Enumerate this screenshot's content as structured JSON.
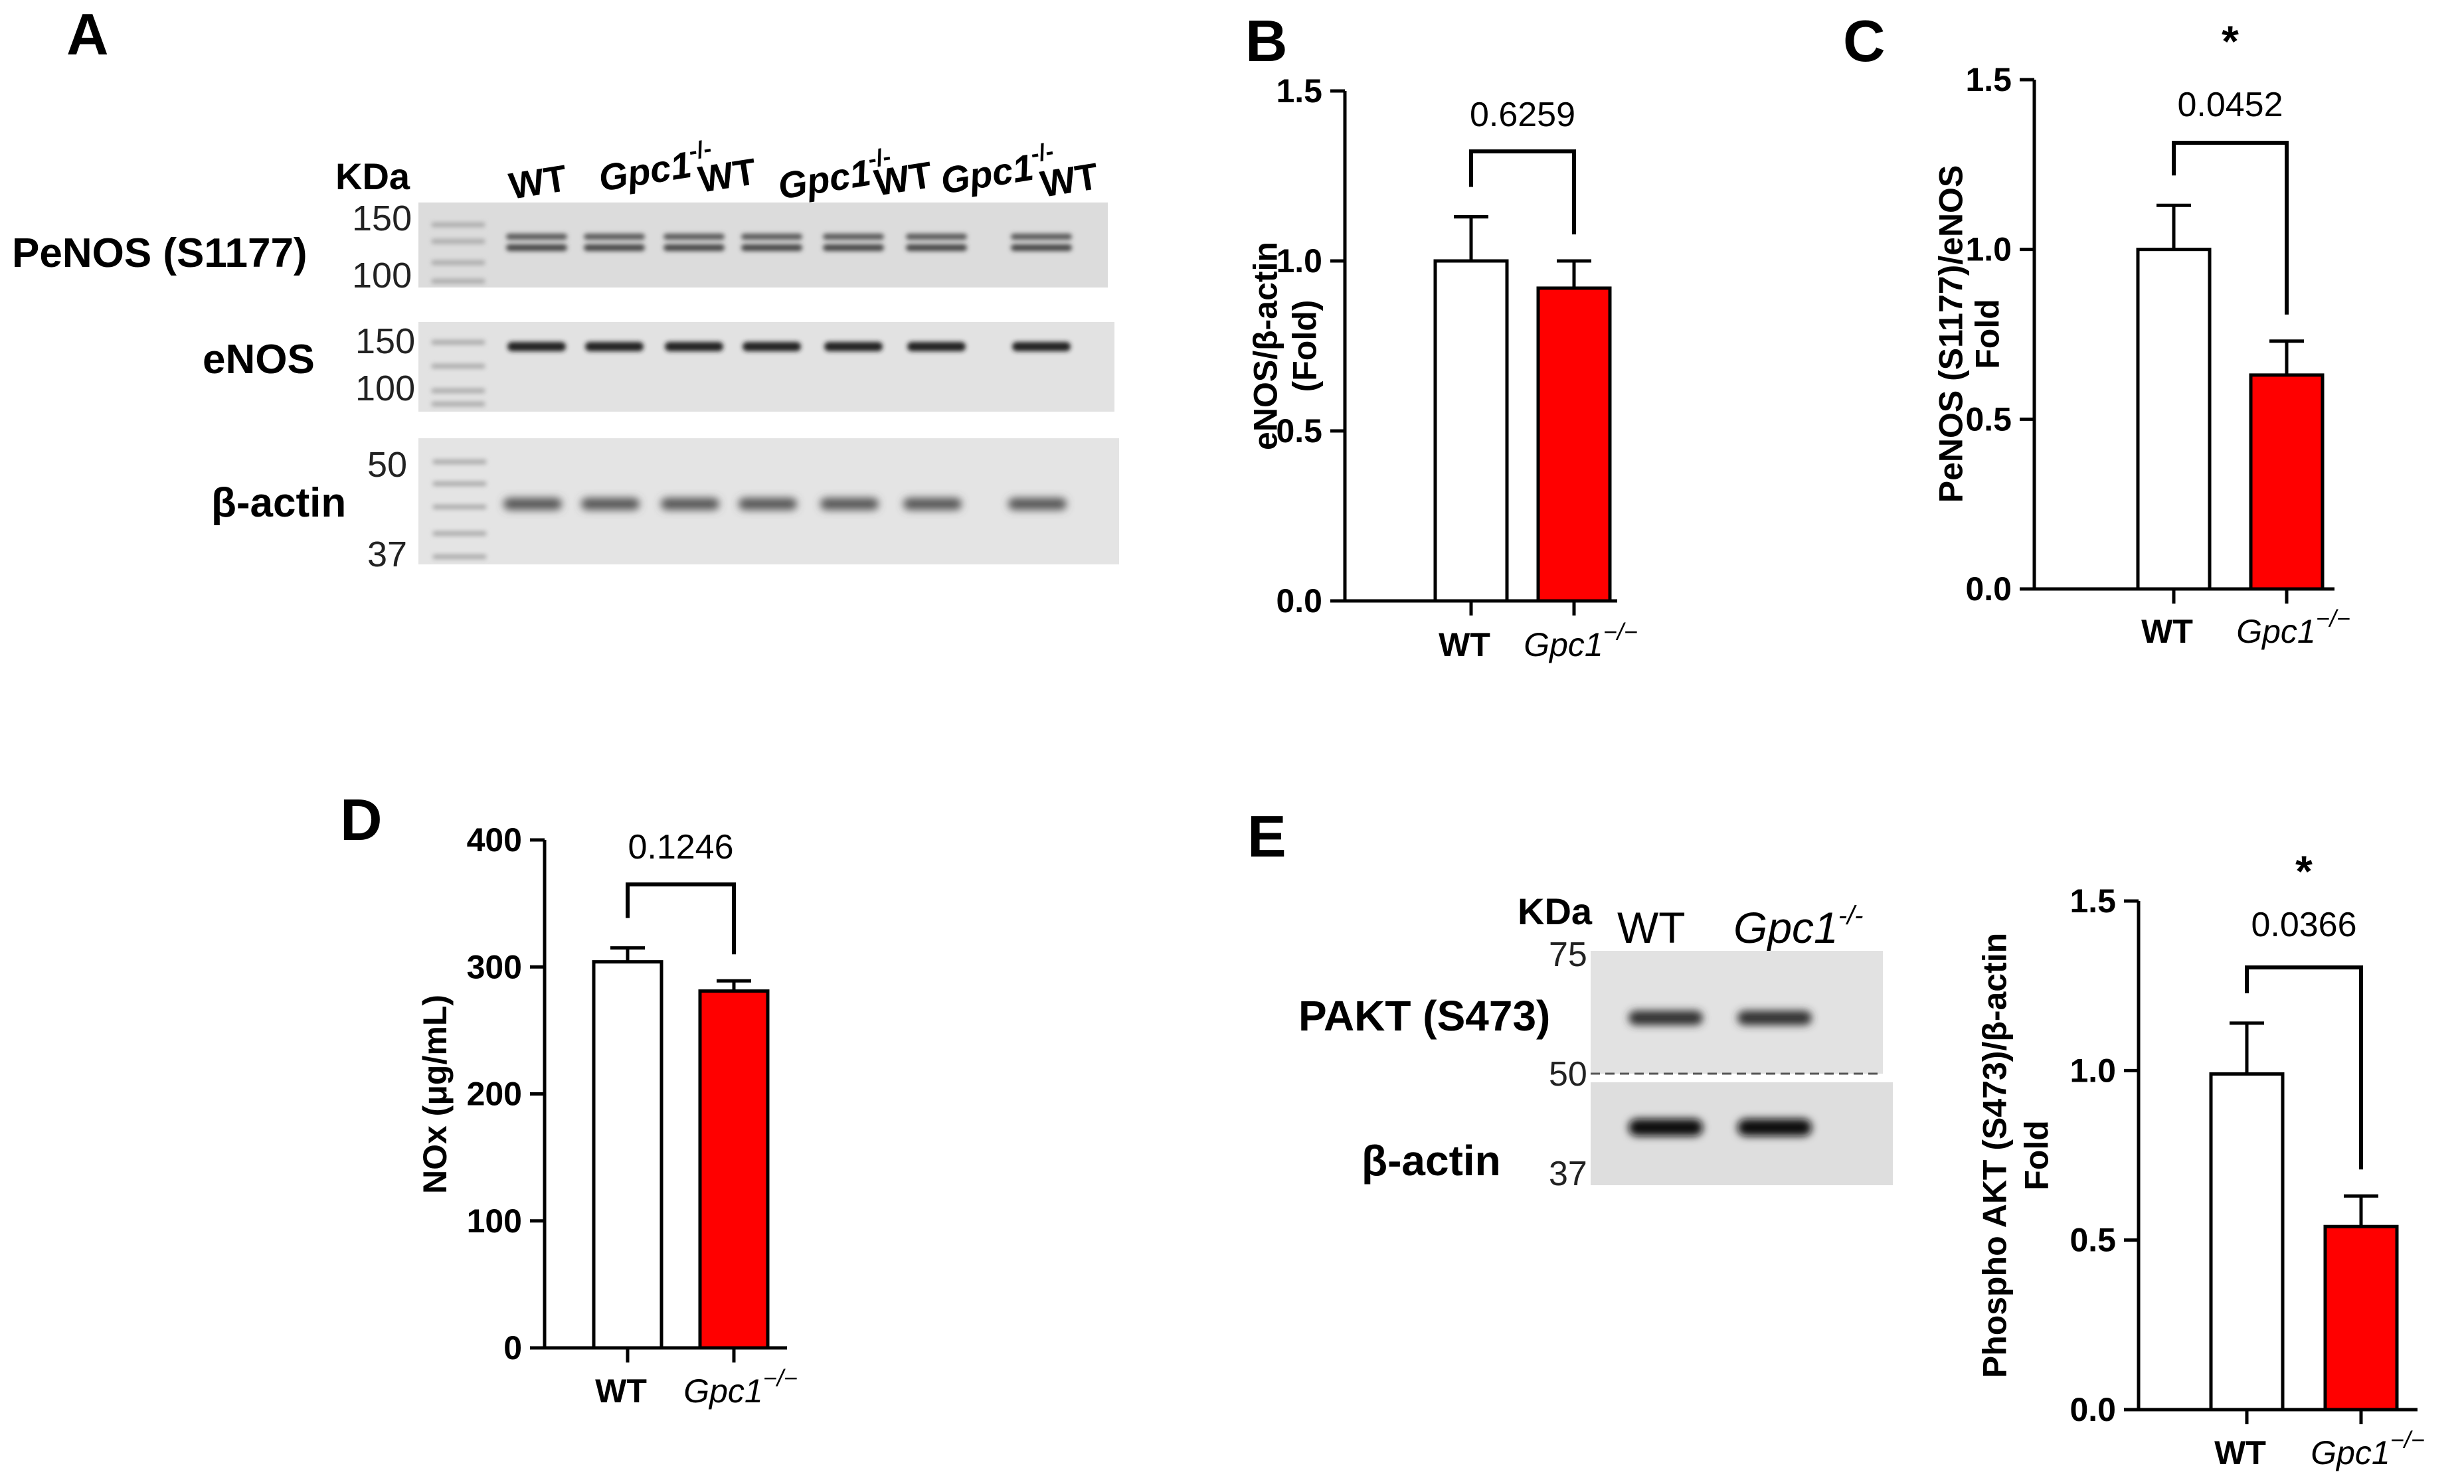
{
  "panels": {
    "A": {
      "label": "A",
      "kda_label": "KDa",
      "lanes": [
        {
          "text": "WT",
          "sup": ""
        },
        {
          "text": "Gpc1",
          "sup": "-/-"
        },
        {
          "text": "WT",
          "sup": ""
        },
        {
          "text": "Gpc1",
          "sup": "-/-"
        },
        {
          "text": "WT",
          "sup": ""
        },
        {
          "text": "Gpc1",
          "sup": "-/-"
        },
        {
          "text": "WT",
          "sup": ""
        }
      ],
      "blots": [
        {
          "name": "PeNOS (S1177)",
          "markers": [
            "150",
            "100"
          ]
        },
        {
          "name": "eNOS",
          "markers": [
            "150",
            "100"
          ]
        },
        {
          "name": "β-actin",
          "markers": [
            "50",
            "37"
          ]
        }
      ]
    },
    "E_blot": {
      "label": "E",
      "kda_label": "KDa",
      "lanes": [
        {
          "text": "WT",
          "sup": ""
        },
        {
          "text": "Gpc1",
          "sup": "-/-"
        }
      ],
      "blots": [
        {
          "name": "PAKT (S473)",
          "markers": [
            "75",
            "50"
          ]
        },
        {
          "name": "β-actin",
          "markers": [
            "37"
          ]
        }
      ]
    }
  },
  "chart_data": [
    {
      "panel": "B",
      "type": "bar",
      "categories": [
        {
          "base": "WT",
          "sup": ""
        },
        {
          "base": "Gpc1",
          "sup": "−/−"
        }
      ],
      "values": [
        1.0,
        0.92
      ],
      "errors": [
        0.13,
        0.08
      ],
      "colors": [
        "#ffffff",
        "#ff0000"
      ],
      "ylabel": [
        "eNOS/β-actin",
        "(Fold)"
      ],
      "ylim": [
        0,
        1.5
      ],
      "yticks": [
        "0.0",
        "0.5",
        "1.0",
        "1.5"
      ],
      "p_value": "0.6259",
      "significance": ""
    },
    {
      "panel": "C",
      "type": "bar",
      "categories": [
        {
          "base": "WT",
          "sup": ""
        },
        {
          "base": "Gpc1",
          "sup": "−/−"
        }
      ],
      "values": [
        1.0,
        0.63
      ],
      "errors": [
        0.13,
        0.1
      ],
      "colors": [
        "#ffffff",
        "#ff0000"
      ],
      "ylabel": [
        "PeNOS (S1177)/eNOS",
        "Fold"
      ],
      "ylim": [
        0,
        1.5
      ],
      "yticks": [
        "0.0",
        "0.5",
        "1.0",
        "1.5"
      ],
      "p_value": "0.0452",
      "significance": "*"
    },
    {
      "panel": "D",
      "type": "bar",
      "categories": [
        {
          "base": "WT",
          "sup": ""
        },
        {
          "base": "Gpc1",
          "sup": "−/−"
        }
      ],
      "values": [
        304,
        281
      ],
      "errors": [
        11,
        8
      ],
      "colors": [
        "#ffffff",
        "#ff0000"
      ],
      "ylabel": [
        "NOx (μg/mL)"
      ],
      "ylim": [
        0,
        400
      ],
      "yticks": [
        "0",
        "100",
        "200",
        "300",
        "400"
      ],
      "p_value": "0.1246",
      "significance": ""
    },
    {
      "panel": "E",
      "type": "bar",
      "categories": [
        {
          "base": "WT",
          "sup": ""
        },
        {
          "base": "Gpc1",
          "sup": "−/−"
        }
      ],
      "values": [
        0.99,
        0.54
      ],
      "errors": [
        0.15,
        0.09
      ],
      "colors": [
        "#ffffff",
        "#ff0000"
      ],
      "ylabel": [
        "Phospho AKT (S473)/β-actin",
        "Fold"
      ],
      "ylim": [
        0,
        1.5
      ],
      "yticks": [
        "0.0",
        "0.5",
        "1.0",
        "1.5"
      ],
      "p_value": "0.0366",
      "significance": "*"
    }
  ]
}
